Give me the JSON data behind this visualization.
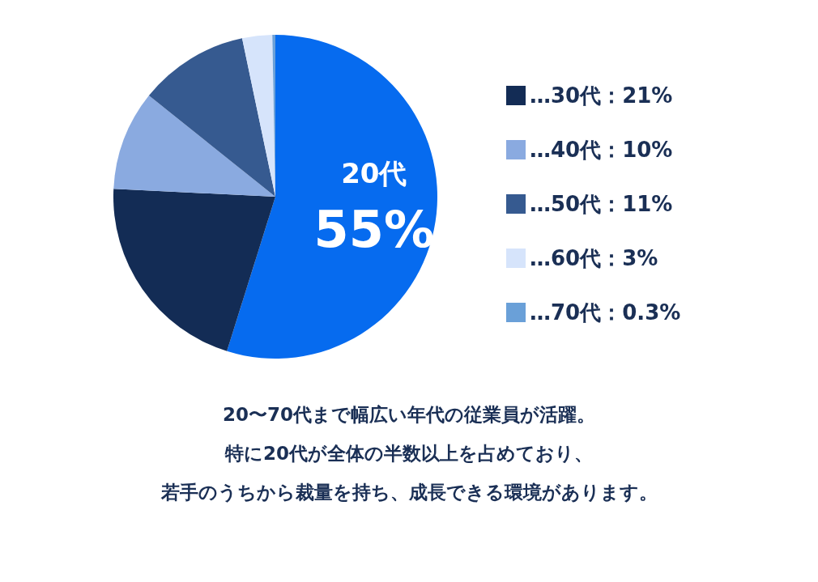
{
  "chart_data": {
    "type": "pie",
    "categories": [
      "20代",
      "…30代：21%",
      "…40代：10%",
      "…50代：11%",
      "…60代：3%",
      "…70代：0.3%"
    ],
    "values": [
      55,
      21,
      10,
      11,
      3,
      0.3
    ],
    "value_labels": [
      "55%",
      null,
      null,
      null,
      null,
      null
    ],
    "colors": [
      "#066bef",
      "#132c55",
      "#8aaae0",
      "#365a90",
      "#d6e4fb",
      "#6aa0d8"
    ],
    "legend": "right",
    "annotations": [
      "20〜70代まで幅広い年代の従業員が活躍。",
      "特に20代が全体の半数以上を占めており、",
      "若手のうちから裁量を持ち、成長できる環境があります。"
    ]
  }
}
